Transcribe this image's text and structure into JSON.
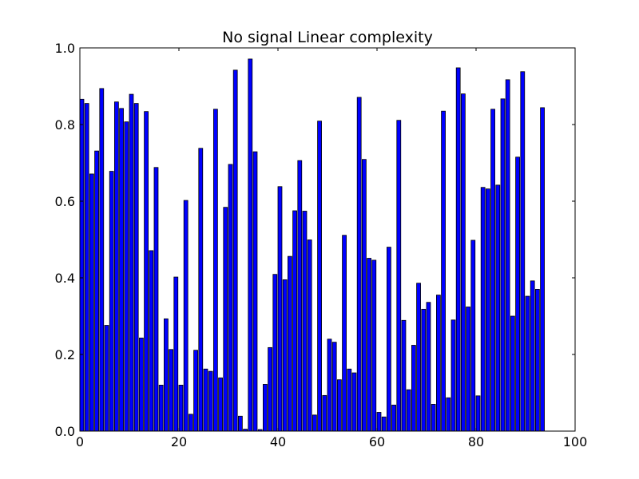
{
  "chart_data": {
    "type": "bar",
    "title": "No signal Linear complexity",
    "xlabel": "",
    "ylabel": "",
    "xlim": [
      0,
      100
    ],
    "ylim": [
      0.0,
      1.0
    ],
    "xticks": [
      0,
      20,
      40,
      60,
      80,
      100
    ],
    "xtick_labels": [
      "0",
      "20",
      "40",
      "60",
      "80",
      "100"
    ],
    "yticks": [
      0.0,
      0.2,
      0.4,
      0.6,
      0.8,
      1.0
    ],
    "ytick_labels": [
      "0.0",
      "0.2",
      "0.4",
      "0.6",
      "0.8",
      "1.0"
    ],
    "grid": false,
    "bar_color": "#0000ff",
    "edge_color": "#000000",
    "bar_width": 0.8,
    "x": [
      0,
      1,
      2,
      3,
      4,
      5,
      6,
      7,
      8,
      9,
      10,
      11,
      12,
      13,
      14,
      15,
      16,
      17,
      18,
      19,
      20,
      21,
      22,
      23,
      24,
      25,
      26,
      27,
      28,
      29,
      30,
      31,
      32,
      33,
      34,
      35,
      36,
      37,
      38,
      39,
      40,
      41,
      42,
      43,
      44,
      45,
      46,
      47,
      48,
      49,
      50,
      51,
      52,
      53,
      54,
      55,
      56,
      57,
      58,
      59,
      60,
      61,
      62,
      63,
      64,
      65,
      66,
      67,
      68,
      69,
      70,
      71,
      72,
      73,
      74,
      75,
      76,
      77,
      78,
      79,
      80,
      81,
      82,
      83,
      84,
      85,
      86,
      87,
      88,
      89,
      90,
      91,
      92,
      93
    ],
    "values": [
      0.866,
      0.855,
      0.671,
      0.731,
      0.894,
      0.276,
      0.678,
      0.859,
      0.842,
      0.807,
      0.879,
      0.855,
      0.243,
      0.834,
      0.471,
      0.688,
      0.12,
      0.293,
      0.213,
      0.402,
      0.12,
      0.602,
      0.044,
      0.211,
      0.738,
      0.162,
      0.156,
      0.84,
      0.139,
      0.584,
      0.696,
      0.942,
      0.039,
      0.005,
      0.971,
      0.729,
      0.004,
      0.122,
      0.218,
      0.409,
      0.638,
      0.395,
      0.456,
      0.575,
      0.706,
      0.574,
      0.499,
      0.042,
      0.809,
      0.093,
      0.24,
      0.232,
      0.134,
      0.511,
      0.162,
      0.152,
      0.871,
      0.709,
      0.451,
      0.446,
      0.049,
      0.037,
      0.48,
      0.068,
      0.811,
      0.289,
      0.108,
      0.224,
      0.386,
      0.318,
      0.336,
      0.07,
      0.355,
      0.835,
      0.087,
      0.29,
      0.948,
      0.88,
      0.324,
      0.498,
      0.092,
      0.636,
      0.632,
      0.84,
      0.642,
      0.867,
      0.917,
      0.3,
      0.715,
      0.938,
      0.352,
      0.392,
      0.37,
      0.844
    ]
  }
}
